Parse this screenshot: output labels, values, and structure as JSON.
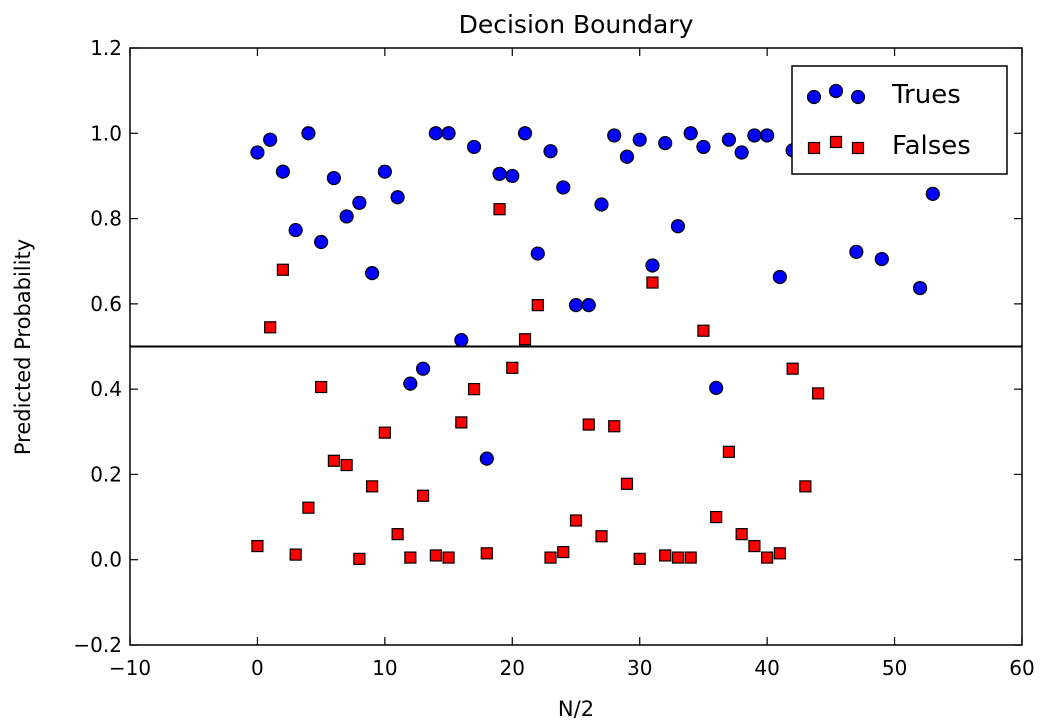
{
  "chart_data": {
    "type": "scatter",
    "title": "Decision Boundary",
    "xlabel": "N/2",
    "ylabel": "Predicted Probability",
    "xlim": [
      -10,
      60
    ],
    "ylim": [
      -0.2,
      1.2
    ],
    "xticks": [
      -10,
      0,
      10,
      20,
      30,
      40,
      50,
      60
    ],
    "xtick_labels": [
      "−10",
      "0",
      "10",
      "20",
      "30",
      "40",
      "50",
      "60"
    ],
    "yticks": [
      -0.2,
      0.0,
      0.2,
      0.4,
      0.6,
      0.8,
      1.0,
      1.2
    ],
    "ytick_labels": [
      "−0.2",
      "0.0",
      "0.2",
      "0.4",
      "0.6",
      "0.8",
      "1.0",
      "1.2"
    ],
    "decision_threshold": 0.5,
    "grid": false,
    "legend_position": "top-right",
    "series": [
      {
        "name": "Trues",
        "marker": "circle",
        "color": "#0000ff",
        "points": [
          [
            0,
            0.955
          ],
          [
            1,
            0.985
          ],
          [
            2,
            0.91
          ],
          [
            3,
            0.773
          ],
          [
            4,
            1.0
          ],
          [
            5,
            0.745
          ],
          [
            6,
            0.895
          ],
          [
            7,
            0.805
          ],
          [
            8,
            0.837
          ],
          [
            9,
            0.672
          ],
          [
            10,
            0.91
          ],
          [
            11,
            0.85
          ],
          [
            12,
            0.413
          ],
          [
            13,
            0.448
          ],
          [
            14,
            1.0
          ],
          [
            15,
            1.0
          ],
          [
            16,
            0.515
          ],
          [
            17,
            0.968
          ],
          [
            18,
            0.237
          ],
          [
            19,
            0.905
          ],
          [
            20,
            0.9
          ],
          [
            21,
            1.0
          ],
          [
            22,
            0.718
          ],
          [
            23,
            0.958
          ],
          [
            24,
            0.873
          ],
          [
            25,
            0.597
          ],
          [
            26,
            0.597
          ],
          [
            27,
            0.833
          ],
          [
            28,
            0.995
          ],
          [
            29,
            0.945
          ],
          [
            30,
            0.985
          ],
          [
            31,
            0.69
          ],
          [
            32,
            0.977
          ],
          [
            33,
            0.782
          ],
          [
            34,
            1.0
          ],
          [
            35,
            0.968
          ],
          [
            36,
            0.403
          ],
          [
            37,
            0.985
          ],
          [
            38,
            0.955
          ],
          [
            39,
            0.995
          ],
          [
            40,
            0.995
          ],
          [
            41,
            0.663
          ],
          [
            42,
            0.96
          ],
          [
            47,
            0.722
          ],
          [
            49,
            0.705
          ],
          [
            52,
            0.637
          ],
          [
            53,
            0.858
          ]
        ]
      },
      {
        "name": "Falses",
        "marker": "square",
        "color": "#ff0000",
        "points": [
          [
            0,
            0.032
          ],
          [
            1,
            0.545
          ],
          [
            2,
            0.68
          ],
          [
            3,
            0.012
          ],
          [
            4,
            0.122
          ],
          [
            5,
            0.405
          ],
          [
            6,
            0.232
          ],
          [
            7,
            0.222
          ],
          [
            8,
            0.002
          ],
          [
            9,
            0.172
          ],
          [
            10,
            0.298
          ],
          [
            11,
            0.06
          ],
          [
            12,
            0.005
          ],
          [
            13,
            0.15
          ],
          [
            14,
            0.01
          ],
          [
            15,
            0.005
          ],
          [
            16,
            0.322
          ],
          [
            17,
            0.4
          ],
          [
            18,
            0.015
          ],
          [
            19,
            0.822
          ],
          [
            20,
            0.45
          ],
          [
            21,
            0.517
          ],
          [
            22,
            0.597
          ],
          [
            23,
            0.005
          ],
          [
            24,
            0.018
          ],
          [
            25,
            0.092
          ],
          [
            26,
            0.317
          ],
          [
            27,
            0.055
          ],
          [
            28,
            0.313
          ],
          [
            29,
            0.178
          ],
          [
            30,
            0.002
          ],
          [
            31,
            0.65
          ],
          [
            32,
            0.01
          ],
          [
            33,
            0.005
          ],
          [
            34,
            0.005
          ],
          [
            35,
            0.537
          ],
          [
            36,
            0.1
          ],
          [
            37,
            0.253
          ],
          [
            38,
            0.06
          ],
          [
            39,
            0.032
          ],
          [
            40,
            0.005
          ],
          [
            41,
            0.015
          ],
          [
            42,
            0.448
          ],
          [
            43,
            0.172
          ],
          [
            44,
            0.39
          ]
        ]
      }
    ]
  }
}
